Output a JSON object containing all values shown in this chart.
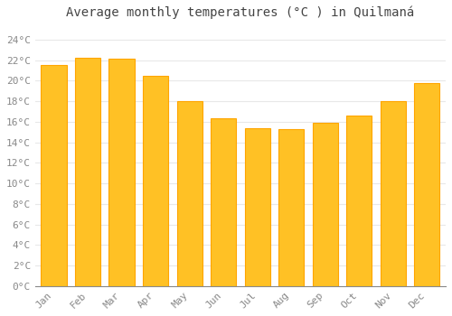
{
  "title": "Average monthly temperatures (°C ) in Quilmaná",
  "months": [
    "Jan",
    "Feb",
    "Mar",
    "Apr",
    "May",
    "Jun",
    "Jul",
    "Aug",
    "Sep",
    "Oct",
    "Nov",
    "Dec"
  ],
  "values": [
    21.5,
    22.2,
    22.1,
    20.5,
    18.0,
    16.3,
    15.4,
    15.3,
    15.9,
    16.6,
    18.0,
    19.8
  ],
  "bar_color_face": "#FFC125",
  "bar_color_edge": "#FFA500",
  "background_color": "#FFFFFF",
  "grid_color": "#E8E8E8",
  "ytick_labels": [
    "0°C",
    "2°C",
    "4°C",
    "6°C",
    "8°C",
    "10°C",
    "12°C",
    "14°C",
    "16°C",
    "18°C",
    "20°C",
    "22°C",
    "24°C"
  ],
  "ytick_values": [
    0,
    2,
    4,
    6,
    8,
    10,
    12,
    14,
    16,
    18,
    20,
    22,
    24
  ],
  "ylim": [
    0,
    25.5
  ],
  "title_fontsize": 10,
  "tick_fontsize": 8,
  "font_family": "monospace",
  "tick_color": "#888888",
  "bar_width": 0.75
}
